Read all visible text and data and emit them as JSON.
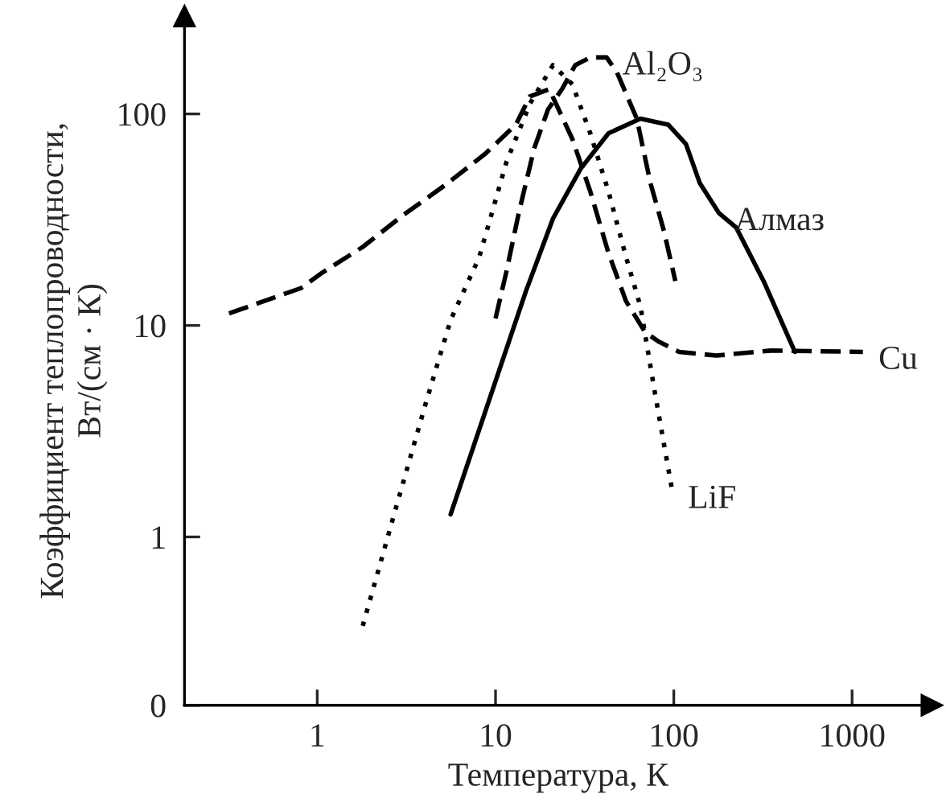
{
  "chart_data": {
    "type": "line",
    "xlabel": "Температура, К",
    "ylabel": "Коэффициент теплопроводности,\nВт/(см · К)",
    "log": "xy",
    "grid": false,
    "legend": false,
    "marker": "none",
    "xlim": [
      0.18,
      2800
    ],
    "xticks": [
      1,
      10,
      100,
      1000
    ],
    "ylim": [
      0.16,
      290
    ],
    "yticks": [
      {
        "value": 0.16,
        "label": "0"
      },
      1,
      10,
      100
    ],
    "series": [
      {
        "color": "#000000",
        "line_style": "dashed",
        "x": [
          0.32,
          0.81,
          1.05,
          1.8,
          3,
          5.2,
          8.8,
          13,
          15.6,
          20,
          27,
          34,
          43,
          54,
          69,
          82,
          107,
          173,
          350,
          1150
        ],
        "values": [
          11.4,
          15,
          17.6,
          23.5,
          33,
          46,
          65,
          89,
          121,
          131,
          76,
          43,
          22,
          13,
          9.3,
          8.4,
          7.5,
          7.2,
          7.6,
          7.5
        ]
      },
      {
        "color": "#000000",
        "line_style": "dashed",
        "x": [
          10,
          11.5,
          13.5,
          16.5,
          19.7,
          23.6,
          28,
          34,
          42,
          48,
          62,
          74,
          88,
          102
        ],
        "values": [
          10.8,
          17.9,
          34,
          69,
          105,
          131,
          170,
          185,
          185,
          157,
          95,
          47,
          28,
          16.2
        ]
      },
      {
        "color": "#000000",
        "line_style": "solid",
        "x": [
          5.6,
          14.8,
          21,
          30,
          43,
          65,
          93,
          117,
          140,
          179,
          224,
          319,
          453,
          478
        ],
        "values": [
          1.28,
          14.5,
          32,
          55,
          81,
          95,
          89,
          72,
          47,
          34,
          29,
          16.2,
          8.3,
          7.5
        ]
      },
      {
        "color": "#000000",
        "line_style": "dotted",
        "x": [
          1.8,
          2.7,
          4.0,
          5.6,
          8.1,
          11.5,
          15.6,
          21,
          27,
          34,
          43,
          54,
          65,
          78,
          98
        ],
        "values": [
          0.38,
          1.28,
          4.1,
          10.6,
          21,
          59,
          112,
          170,
          138,
          81,
          43,
          21,
          12.3,
          4.9,
          1.65
        ]
      }
    ],
    "annotations": [
      {
        "text": "Al₂O₃",
        "x": 42,
        "y": 185
      },
      {
        "text": "Алмаз",
        "x": 179,
        "y": 34
      },
      {
        "text": "Cu",
        "x": 1150,
        "y": 7.5
      },
      {
        "text": "LiF",
        "x": 98,
        "y": 1.65
      }
    ]
  }
}
